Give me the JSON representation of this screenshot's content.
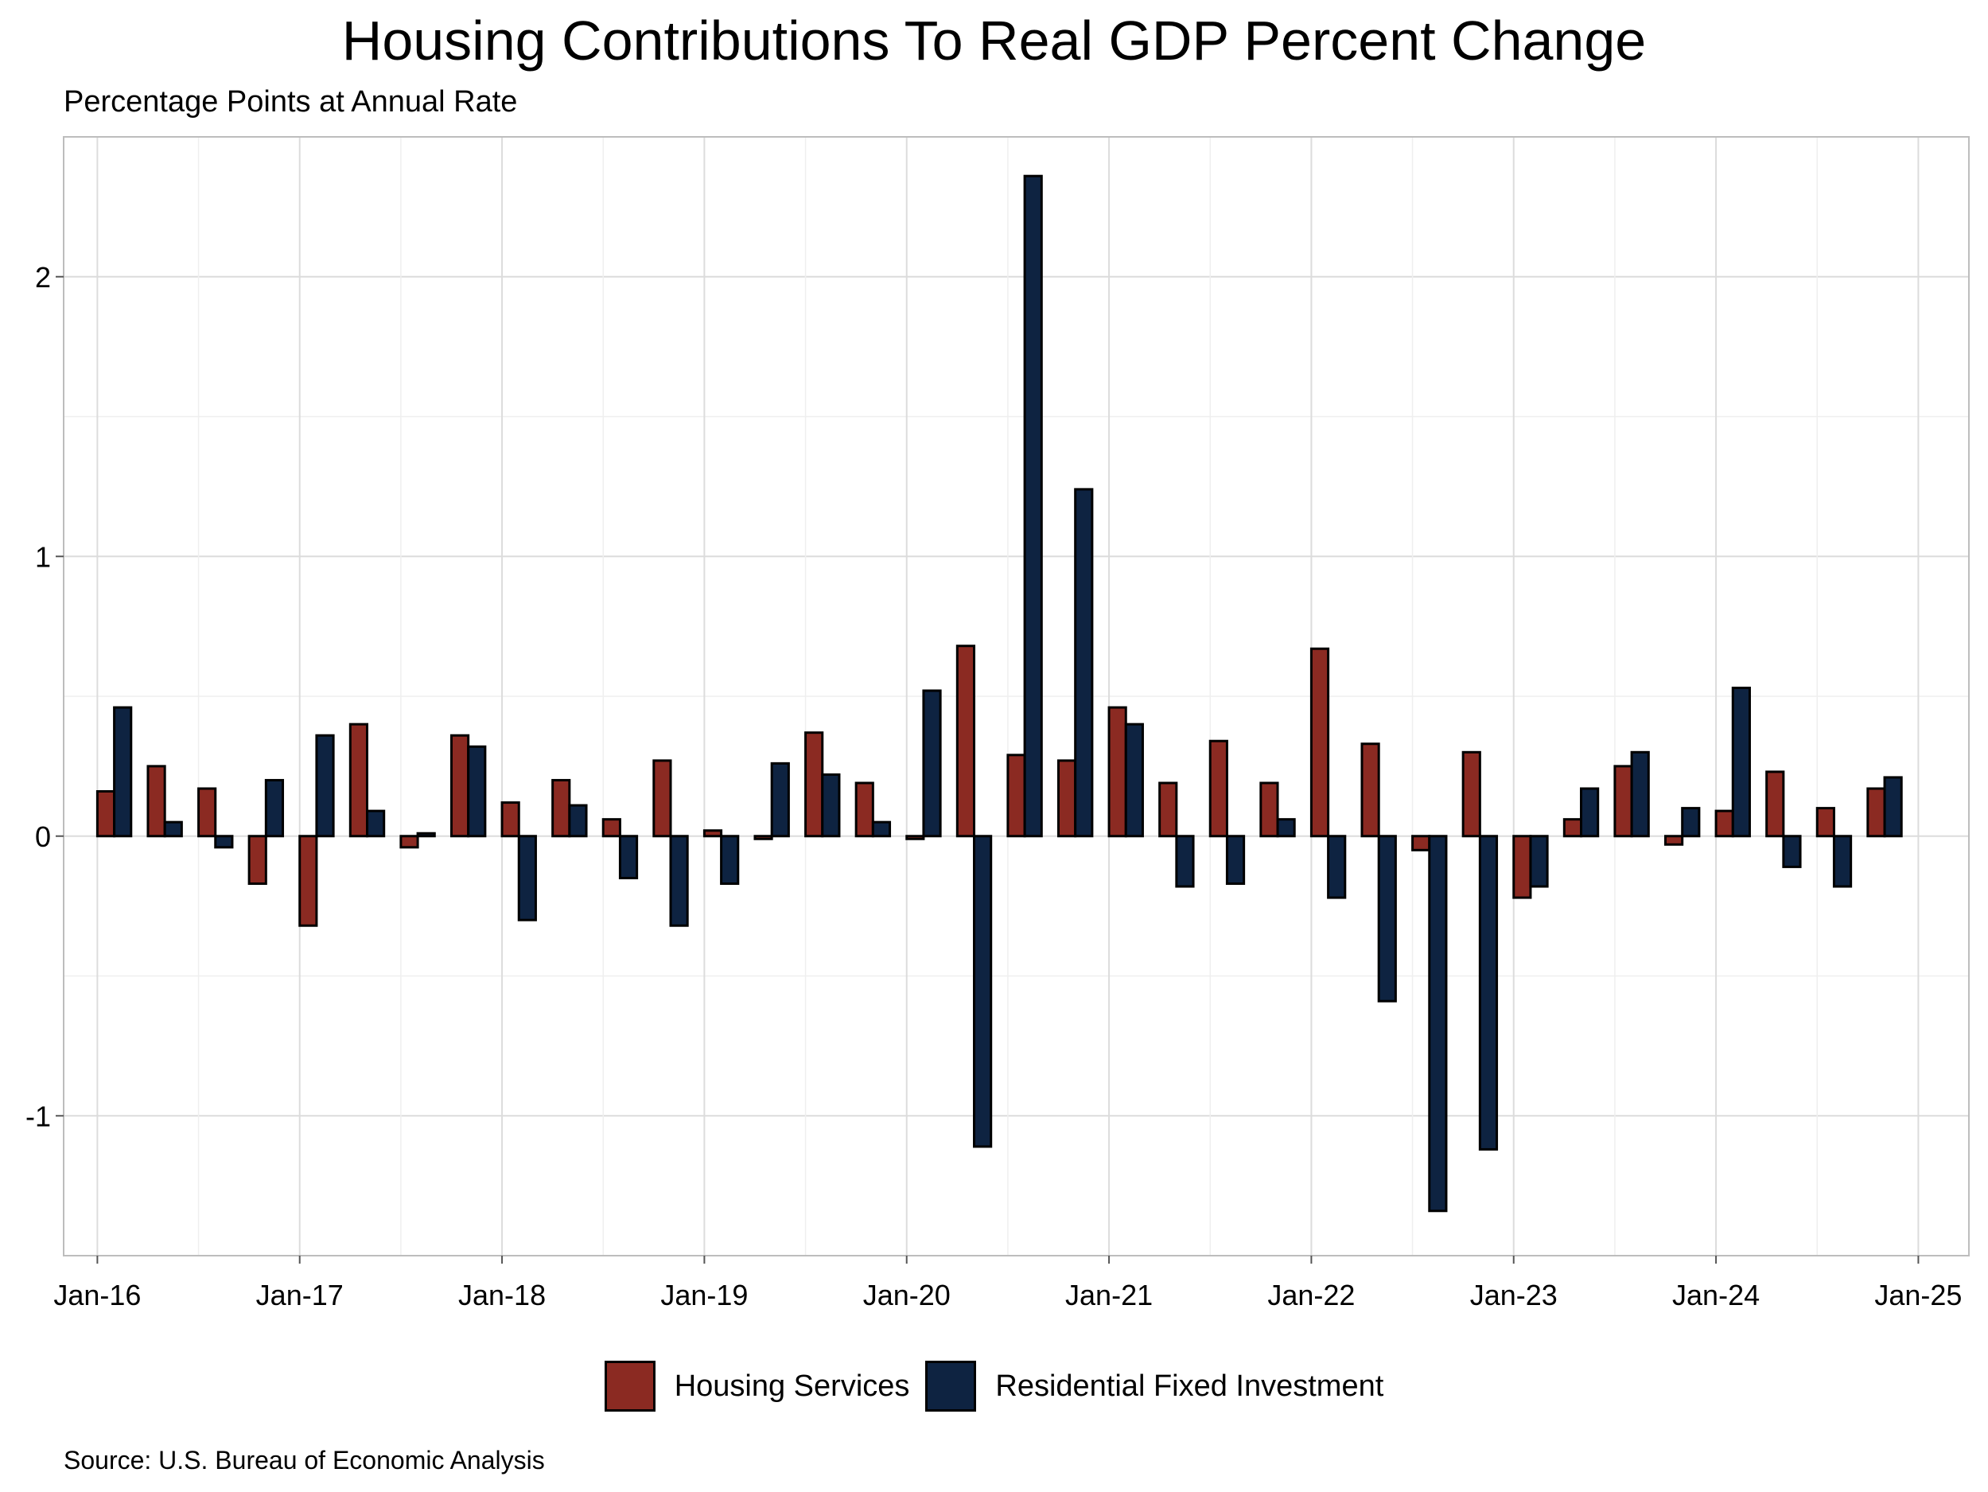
{
  "chart_data": {
    "type": "bar",
    "title": "Housing Contributions To Real GDP Percent Change",
    "subtitle": "Percentage Points at Annual Rate",
    "source": "Source: U.S. Bureau of Economic Analysis",
    "xlabel": "",
    "ylabel": "",
    "categories": [
      "2016-Q1",
      "2016-Q2",
      "2016-Q3",
      "2016-Q4",
      "2017-Q1",
      "2017-Q2",
      "2017-Q3",
      "2017-Q4",
      "2018-Q1",
      "2018-Q2",
      "2018-Q3",
      "2018-Q4",
      "2019-Q1",
      "2019-Q2",
      "2019-Q3",
      "2019-Q4",
      "2020-Q1",
      "2020-Q2",
      "2020-Q3",
      "2020-Q4",
      "2021-Q1",
      "2021-Q2",
      "2021-Q3",
      "2021-Q4",
      "2022-Q1",
      "2022-Q2",
      "2022-Q3",
      "2022-Q4",
      "2023-Q1",
      "2023-Q2",
      "2023-Q3",
      "2023-Q4",
      "2024-Q1",
      "2024-Q2",
      "2024-Q3",
      "2024-Q4"
    ],
    "series": [
      {
        "name": "Housing Services",
        "color": "#8B2A22",
        "values": [
          0.16,
          0.25,
          0.17,
          -0.17,
          -0.32,
          0.4,
          -0.04,
          0.36,
          0.12,
          0.2,
          0.06,
          0.27,
          0.02,
          -0.01,
          0.37,
          0.19,
          -0.01,
          0.68,
          0.29,
          0.27,
          0.46,
          0.19,
          0.34,
          0.19,
          0.67,
          0.33,
          -0.05,
          0.3,
          -0.22,
          0.06,
          0.25,
          -0.03,
          0.09,
          0.23,
          0.1,
          0.17
        ]
      },
      {
        "name": "Residential Fixed Investment",
        "color": "#0E2341",
        "values": [
          0.46,
          0.05,
          -0.04,
          0.2,
          0.36,
          0.09,
          0.01,
          0.32,
          -0.3,
          0.11,
          -0.15,
          -0.32,
          -0.17,
          0.26,
          0.22,
          0.05,
          0.52,
          -1.11,
          2.36,
          1.24,
          0.4,
          -0.18,
          -0.17,
          0.06,
          -0.22,
          -0.59,
          -1.34,
          -1.12,
          -0.18,
          0.17,
          0.3,
          0.1,
          0.53,
          -0.11,
          -0.18,
          0.21
        ]
      }
    ],
    "x_ticks": [
      "Jan-16",
      "Jan-17",
      "Jan-18",
      "Jan-19",
      "Jan-20",
      "Jan-21",
      "Jan-22",
      "Jan-23",
      "Jan-24",
      "Jan-25"
    ],
    "y_ticks": [
      "2",
      "1",
      "0",
      "-1"
    ],
    "y_tick_values": [
      2,
      1,
      0,
      -1
    ],
    "ylim": [
      -1.5,
      2.5
    ],
    "xlim": [
      "2015-11",
      "2025-04"
    ],
    "grid": true,
    "legend_position": "bottom"
  }
}
